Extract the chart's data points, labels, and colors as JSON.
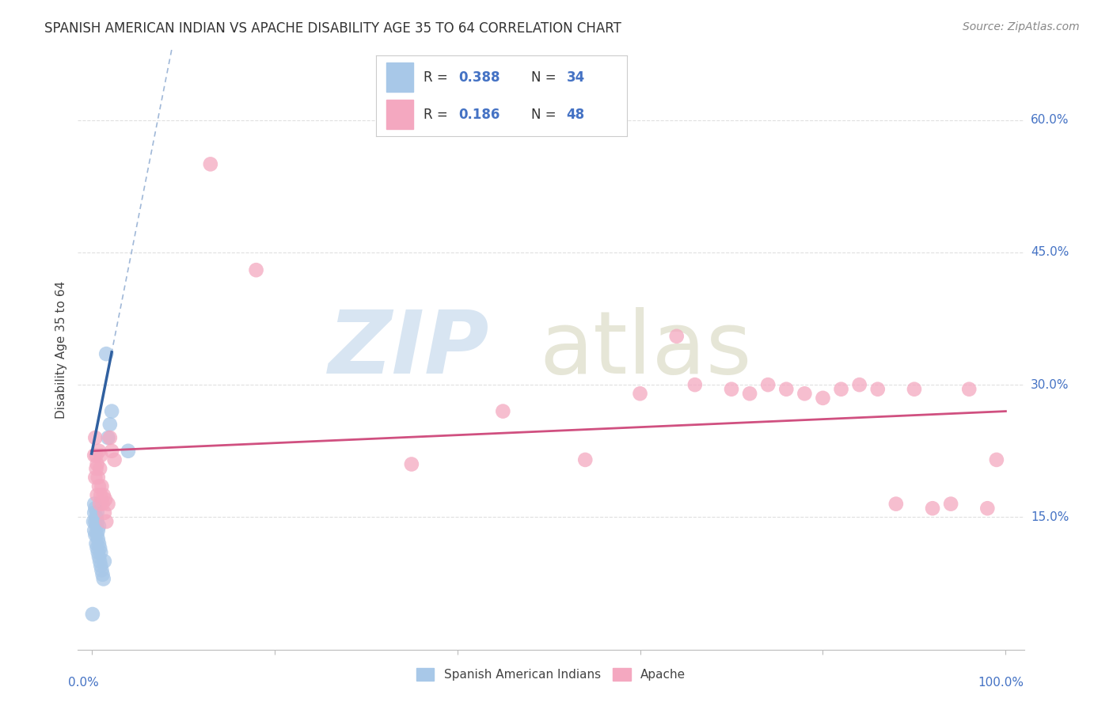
{
  "title": "SPANISH AMERICAN INDIAN VS APACHE DISABILITY AGE 35 TO 64 CORRELATION CHART",
  "source": "Source: ZipAtlas.com",
  "ylabel": "Disability Age 35 to 64",
  "ytick_labels": [
    "15.0%",
    "30.0%",
    "45.0%",
    "60.0%"
  ],
  "ytick_values": [
    0.15,
    0.3,
    0.45,
    0.6
  ],
  "legend_label1": "Spanish American Indians",
  "legend_label2": "Apache",
  "R1": "0.388",
  "N1": "34",
  "R2": "0.186",
  "N2": "48",
  "blue_color": "#A8C8E8",
  "pink_color": "#F4A8C0",
  "blue_line_color": "#3060A0",
  "pink_line_color": "#D05080",
  "blue_dash_color": "#A0B8D8",
  "background_color": "#FFFFFF",
  "grid_color": "#DDDDDD",
  "text_blue": "#4472C4",
  "legend_text": "#333333",
  "blue_x": [
    0.001,
    0.002,
    0.003,
    0.003,
    0.003,
    0.004,
    0.004,
    0.004,
    0.005,
    0.005,
    0.005,
    0.006,
    0.006,
    0.006,
    0.006,
    0.007,
    0.007,
    0.007,
    0.008,
    0.008,
    0.008,
    0.009,
    0.009,
    0.01,
    0.01,
    0.011,
    0.012,
    0.013,
    0.014,
    0.016,
    0.018,
    0.02,
    0.022,
    0.04
  ],
  "blue_y": [
    0.04,
    0.145,
    0.135,
    0.155,
    0.165,
    0.13,
    0.145,
    0.16,
    0.12,
    0.14,
    0.15,
    0.115,
    0.13,
    0.145,
    0.155,
    0.11,
    0.125,
    0.135,
    0.105,
    0.12,
    0.14,
    0.1,
    0.115,
    0.095,
    0.11,
    0.09,
    0.085,
    0.08,
    0.1,
    0.335,
    0.24,
    0.255,
    0.27,
    0.225
  ],
  "pink_x": [
    0.003,
    0.004,
    0.004,
    0.005,
    0.005,
    0.006,
    0.006,
    0.007,
    0.008,
    0.008,
    0.009,
    0.009,
    0.01,
    0.01,
    0.011,
    0.012,
    0.013,
    0.014,
    0.015,
    0.016,
    0.018,
    0.02,
    0.022,
    0.025,
    0.13,
    0.6,
    0.64,
    0.66,
    0.7,
    0.72,
    0.74,
    0.76,
    0.78,
    0.8,
    0.82,
    0.84,
    0.86,
    0.88,
    0.9,
    0.92,
    0.94,
    0.96,
    0.98,
    0.99,
    0.35,
    0.45,
    0.54,
    0.18
  ],
  "pink_y": [
    0.22,
    0.195,
    0.24,
    0.205,
    0.22,
    0.175,
    0.21,
    0.195,
    0.185,
    0.225,
    0.165,
    0.205,
    0.175,
    0.22,
    0.185,
    0.165,
    0.175,
    0.155,
    0.17,
    0.145,
    0.165,
    0.24,
    0.225,
    0.215,
    0.55,
    0.29,
    0.355,
    0.3,
    0.295,
    0.29,
    0.3,
    0.295,
    0.29,
    0.285,
    0.295,
    0.3,
    0.295,
    0.165,
    0.295,
    0.16,
    0.165,
    0.295,
    0.16,
    0.215,
    0.21,
    0.27,
    0.215,
    0.43
  ]
}
